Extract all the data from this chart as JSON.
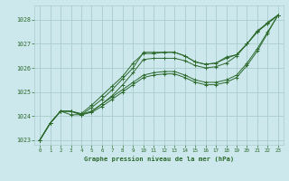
{
  "title": "Graphe pression niveau de la mer (hPa)",
  "background_color": "#cce8ec",
  "grid_color": "#aacccc",
  "line_color": "#2d6a2d",
  "xlim": [
    -0.5,
    23.5
  ],
  "ylim": [
    1022.8,
    1028.6
  ],
  "yticks": [
    1023,
    1024,
    1025,
    1026,
    1027,
    1028
  ],
  "xticks": [
    0,
    1,
    2,
    3,
    4,
    5,
    6,
    7,
    8,
    9,
    10,
    11,
    12,
    13,
    14,
    15,
    16,
    17,
    18,
    19,
    20,
    21,
    22,
    23
  ],
  "series": [
    [
      1023.0,
      1023.7,
      1024.2,
      1024.2,
      1024.05,
      1024.35,
      1024.7,
      1025.1,
      1025.55,
      1026.0,
      1026.65,
      1026.65,
      1026.65,
      1026.65,
      1026.5,
      1026.25,
      1026.15,
      1026.2,
      1026.4,
      1026.55,
      1027.0,
      1027.55,
      1027.85,
      1028.2
    ],
    [
      1023.0,
      1023.7,
      1024.2,
      1024.2,
      1024.05,
      1024.2,
      1024.5,
      1024.8,
      1025.1,
      1025.4,
      1025.7,
      1025.8,
      1025.85,
      1025.85,
      1025.7,
      1025.5,
      1025.4,
      1025.4,
      1025.5,
      1025.7,
      1026.2,
      1026.8,
      1027.5,
      1028.2
    ],
    [
      1023.0,
      1023.7,
      1024.2,
      1024.2,
      1024.05,
      1024.15,
      1024.4,
      1024.7,
      1025.0,
      1025.3,
      1025.6,
      1025.7,
      1025.75,
      1025.75,
      1025.6,
      1025.4,
      1025.3,
      1025.3,
      1025.4,
      1025.6,
      1026.1,
      1026.7,
      1027.45,
      1028.2
    ],
    [
      1023.0,
      1023.7,
      1024.2,
      1024.2,
      1024.1,
      1024.45,
      1024.85,
      1025.25,
      1025.65,
      1026.2,
      1026.6,
      1026.6,
      1026.65,
      1026.65,
      1026.5,
      1026.25,
      1026.15,
      1026.2,
      1026.45,
      1026.55,
      1027.0,
      1027.5,
      1027.85,
      1028.2
    ],
    [
      1023.0,
      1023.7,
      1024.2,
      1024.05,
      1024.05,
      1024.2,
      1024.5,
      1024.85,
      1025.3,
      1025.8,
      1026.35,
      1026.4,
      1026.4,
      1026.4,
      1026.3,
      1026.1,
      1026.0,
      1026.05,
      1026.2,
      1026.5,
      1027.0,
      1027.5,
      1027.9,
      1028.2
    ]
  ]
}
